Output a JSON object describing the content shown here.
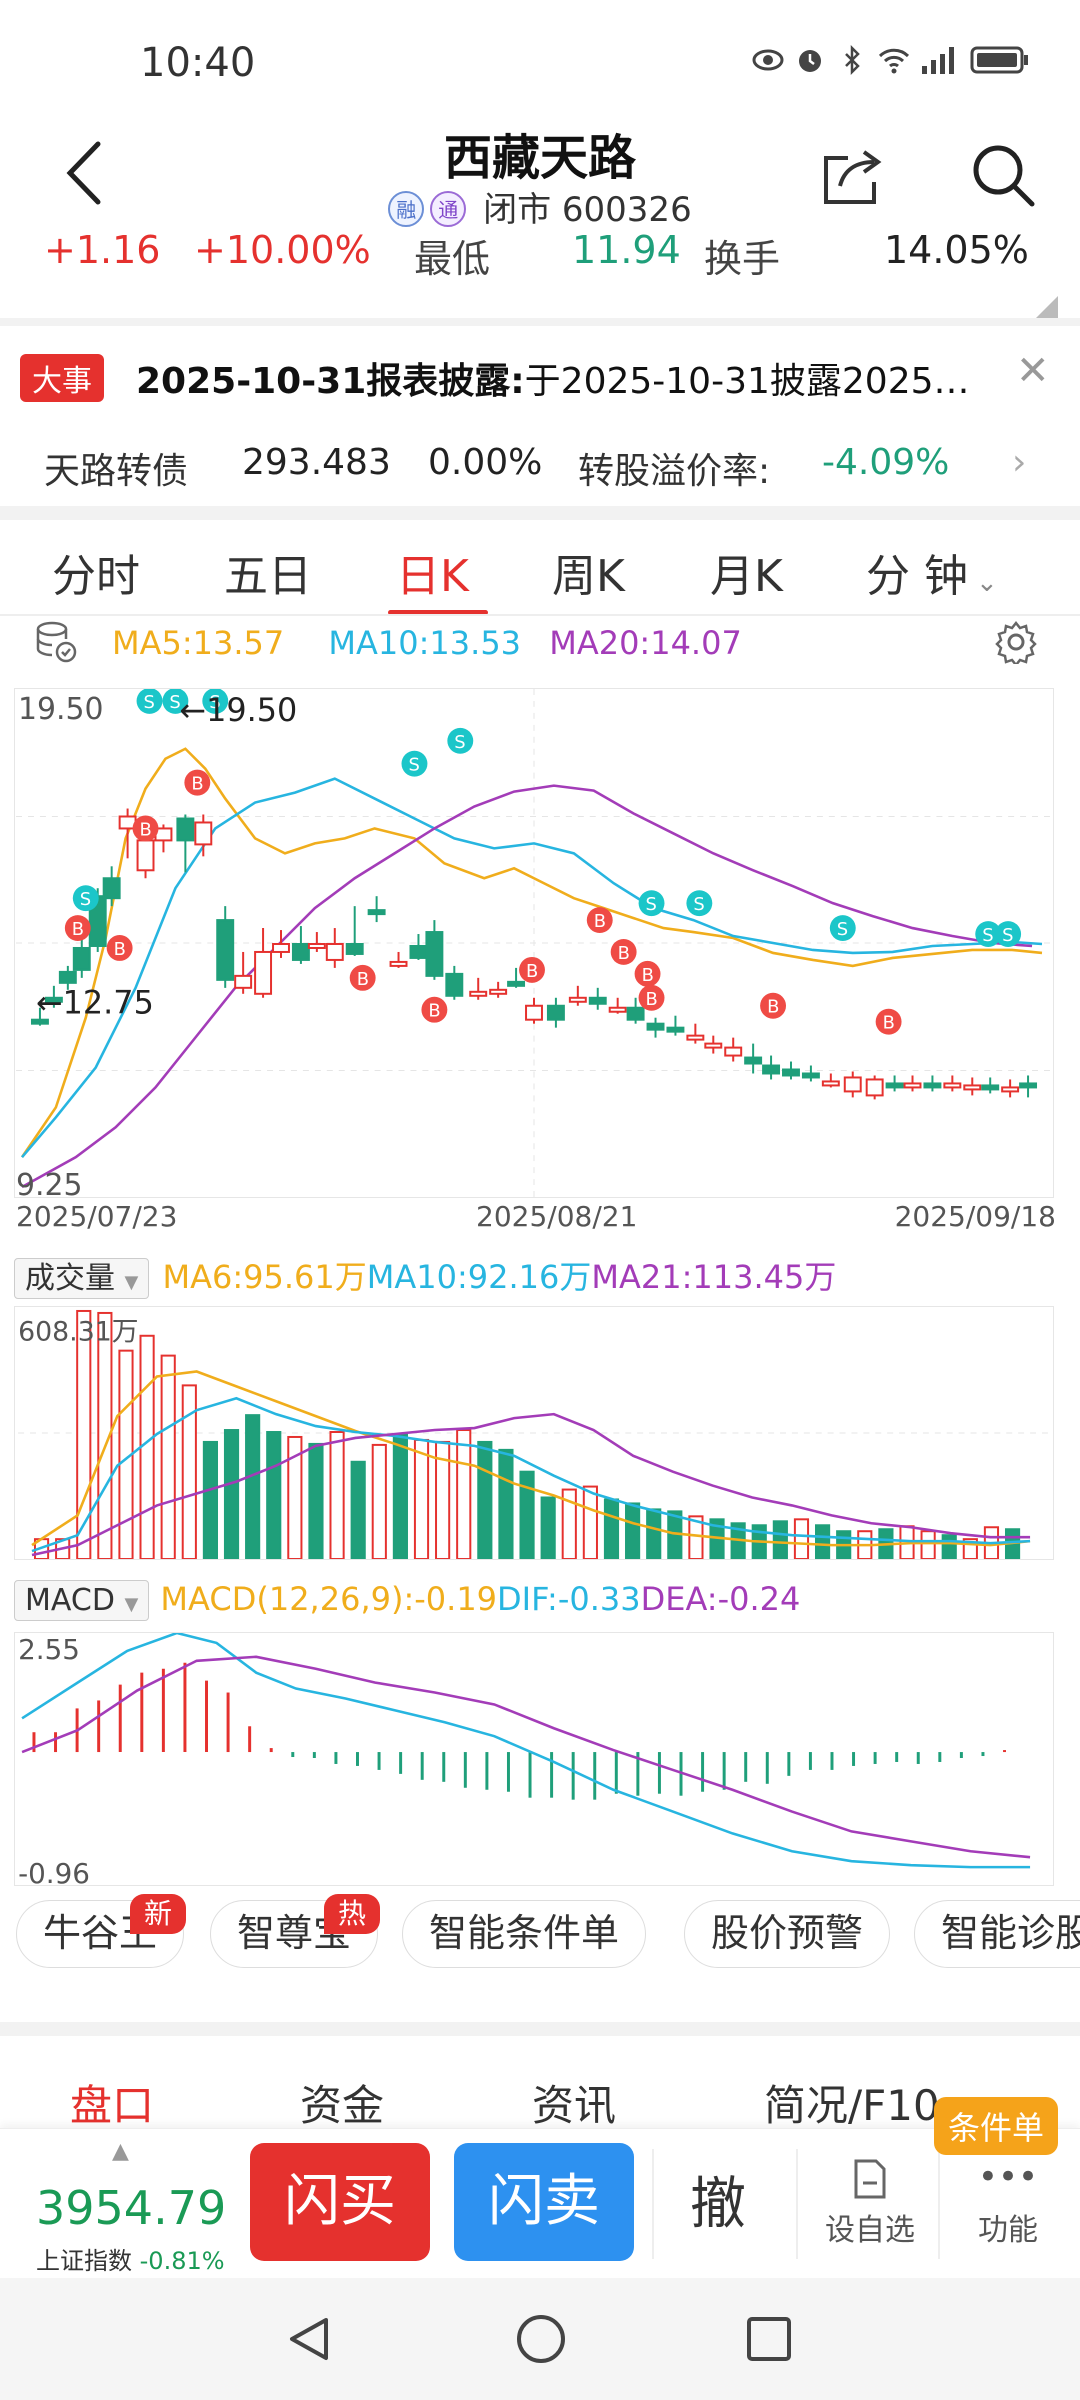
{
  "status_bar": {
    "time": "10:40"
  },
  "header": {
    "title": "西藏天路",
    "tag_rong": "融",
    "tag_tong": "通",
    "market_state": "闭市",
    "code": "600326"
  },
  "stats": {
    "change": "+1.16",
    "change_pct": "+10.00%",
    "low_label": "最低",
    "low_value": "11.94",
    "turnover_label": "换手",
    "turnover_value": "14.05%"
  },
  "news": {
    "badge": "大事",
    "headline": "2025-10-31报表披露:",
    "body": "于2025-10-31披露2025…"
  },
  "bond": {
    "name": "天路转债",
    "price": "293.483",
    "change": "0.00%",
    "premium_label": "转股溢价率:",
    "premium_value": "-4.09%"
  },
  "tabs": [
    "分时",
    "五日",
    "日K",
    "周K",
    "月K",
    "分 钟"
  ],
  "kline": {
    "ma5": "MA5:13.57",
    "ma10": "MA10:13.53",
    "ma20": "MA20:14.07",
    "y_top": "19.50",
    "y_bottom": "9.25",
    "high_marker": "←19.50",
    "low_marker": "←12.75",
    "dates": [
      "2025/07/23",
      "2025/08/21",
      "2025/09/18"
    ]
  },
  "volume": {
    "selector": "成交量",
    "ma6": "MA6:95.61万",
    "ma10": "MA10:92.16万",
    "ma21": "MA21:113.45万",
    "y_top": "608.31万"
  },
  "macd": {
    "selector": "MACD",
    "macd": "MACD(12,26,9):-0.19",
    "dif": "DIF:-0.33",
    "dea": "DEA:-0.24",
    "y_top": "2.55",
    "y_bottom": "-0.96"
  },
  "tools": [
    {
      "label": "牛谷王",
      "tag": "新"
    },
    {
      "label": "智尊宝",
      "tag": "热"
    },
    {
      "label": "智能条件单",
      "tag": ""
    },
    {
      "label": "股价预警",
      "tag": ""
    },
    {
      "label": "智能诊股",
      "tag": ""
    }
  ],
  "bottom_tabs": [
    "盘口",
    "资金",
    "资讯",
    "简况/F10"
  ],
  "bottom_bar": {
    "index_value": "3954.79",
    "index_label": "上证指数",
    "index_change": "-0.81%",
    "buy": "闪买",
    "sell": "闪卖",
    "cancel": "撤",
    "favorite": "设自选",
    "function": "功能",
    "conditional": "条件单"
  },
  "colors": {
    "up": "#e5312e",
    "down": "#1f9f7a",
    "ma5": "#f0ad1c",
    "ma10": "#27b5e0",
    "ma20": "#a33cb8"
  }
}
